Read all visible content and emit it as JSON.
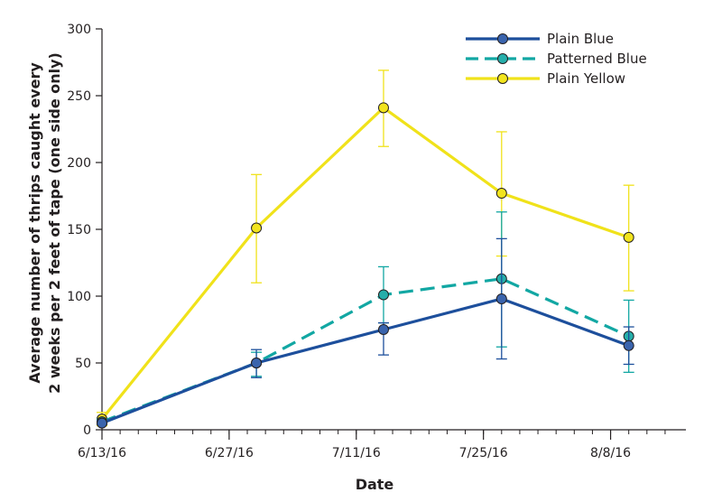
{
  "chart_data": {
    "type": "line",
    "title": "",
    "xlabel": "Date",
    "ylabel_lines": [
      "Average number of thrips caught every",
      "2 weeks per 2 feet of tape (one side only)"
    ],
    "ylim": [
      0,
      300
    ],
    "yticks": [
      "0",
      "50",
      "100",
      "150",
      "200",
      "250",
      "300"
    ],
    "xlim": [
      "2016-06-13",
      "2016-08-15"
    ],
    "xticks": [
      {
        "date": "2016-06-13",
        "label": "6/13/16"
      },
      {
        "date": "2016-06-27",
        "label": "6/27/16"
      },
      {
        "date": "2016-07-11",
        "label": "7/11/16"
      },
      {
        "date": "2016-07-25",
        "label": "7/25/16"
      },
      {
        "date": "2016-08-08",
        "label": "8/8/16"
      }
    ],
    "x": [
      "2016-06-13",
      "2016-06-30",
      "2016-07-14",
      "2016-07-27",
      "2016-08-10"
    ],
    "grid": false,
    "legend_position": "top-right",
    "series": [
      {
        "name": "Plain Blue",
        "color": "#1d4f9c",
        "marker_color": "#3a64ad",
        "dash": "solid",
        "values": [
          5,
          50,
          75,
          98,
          63
        ],
        "error_low": [
          4,
          39,
          56,
          53,
          49
        ],
        "error_high": [
          7,
          60,
          80,
          143,
          77
        ]
      },
      {
        "name": "Patterned Blue",
        "color": "#12a7a3",
        "marker_color": "#26aeaa",
        "dash": "dashed",
        "values": [
          6,
          50,
          101,
          113,
          70
        ],
        "error_low": [
          4,
          40,
          80,
          62,
          43
        ],
        "error_high": [
          8,
          58,
          122,
          163,
          97
        ]
      },
      {
        "name": "Plain Yellow",
        "color": "#f0e21a",
        "marker_color": "#f2e41d",
        "dash": "solid",
        "values": [
          8,
          151,
          241,
          177,
          144
        ],
        "error_low": [
          3,
          110,
          212,
          130,
          104
        ],
        "error_high": [
          13,
          191,
          269,
          223,
          183
        ]
      }
    ]
  }
}
